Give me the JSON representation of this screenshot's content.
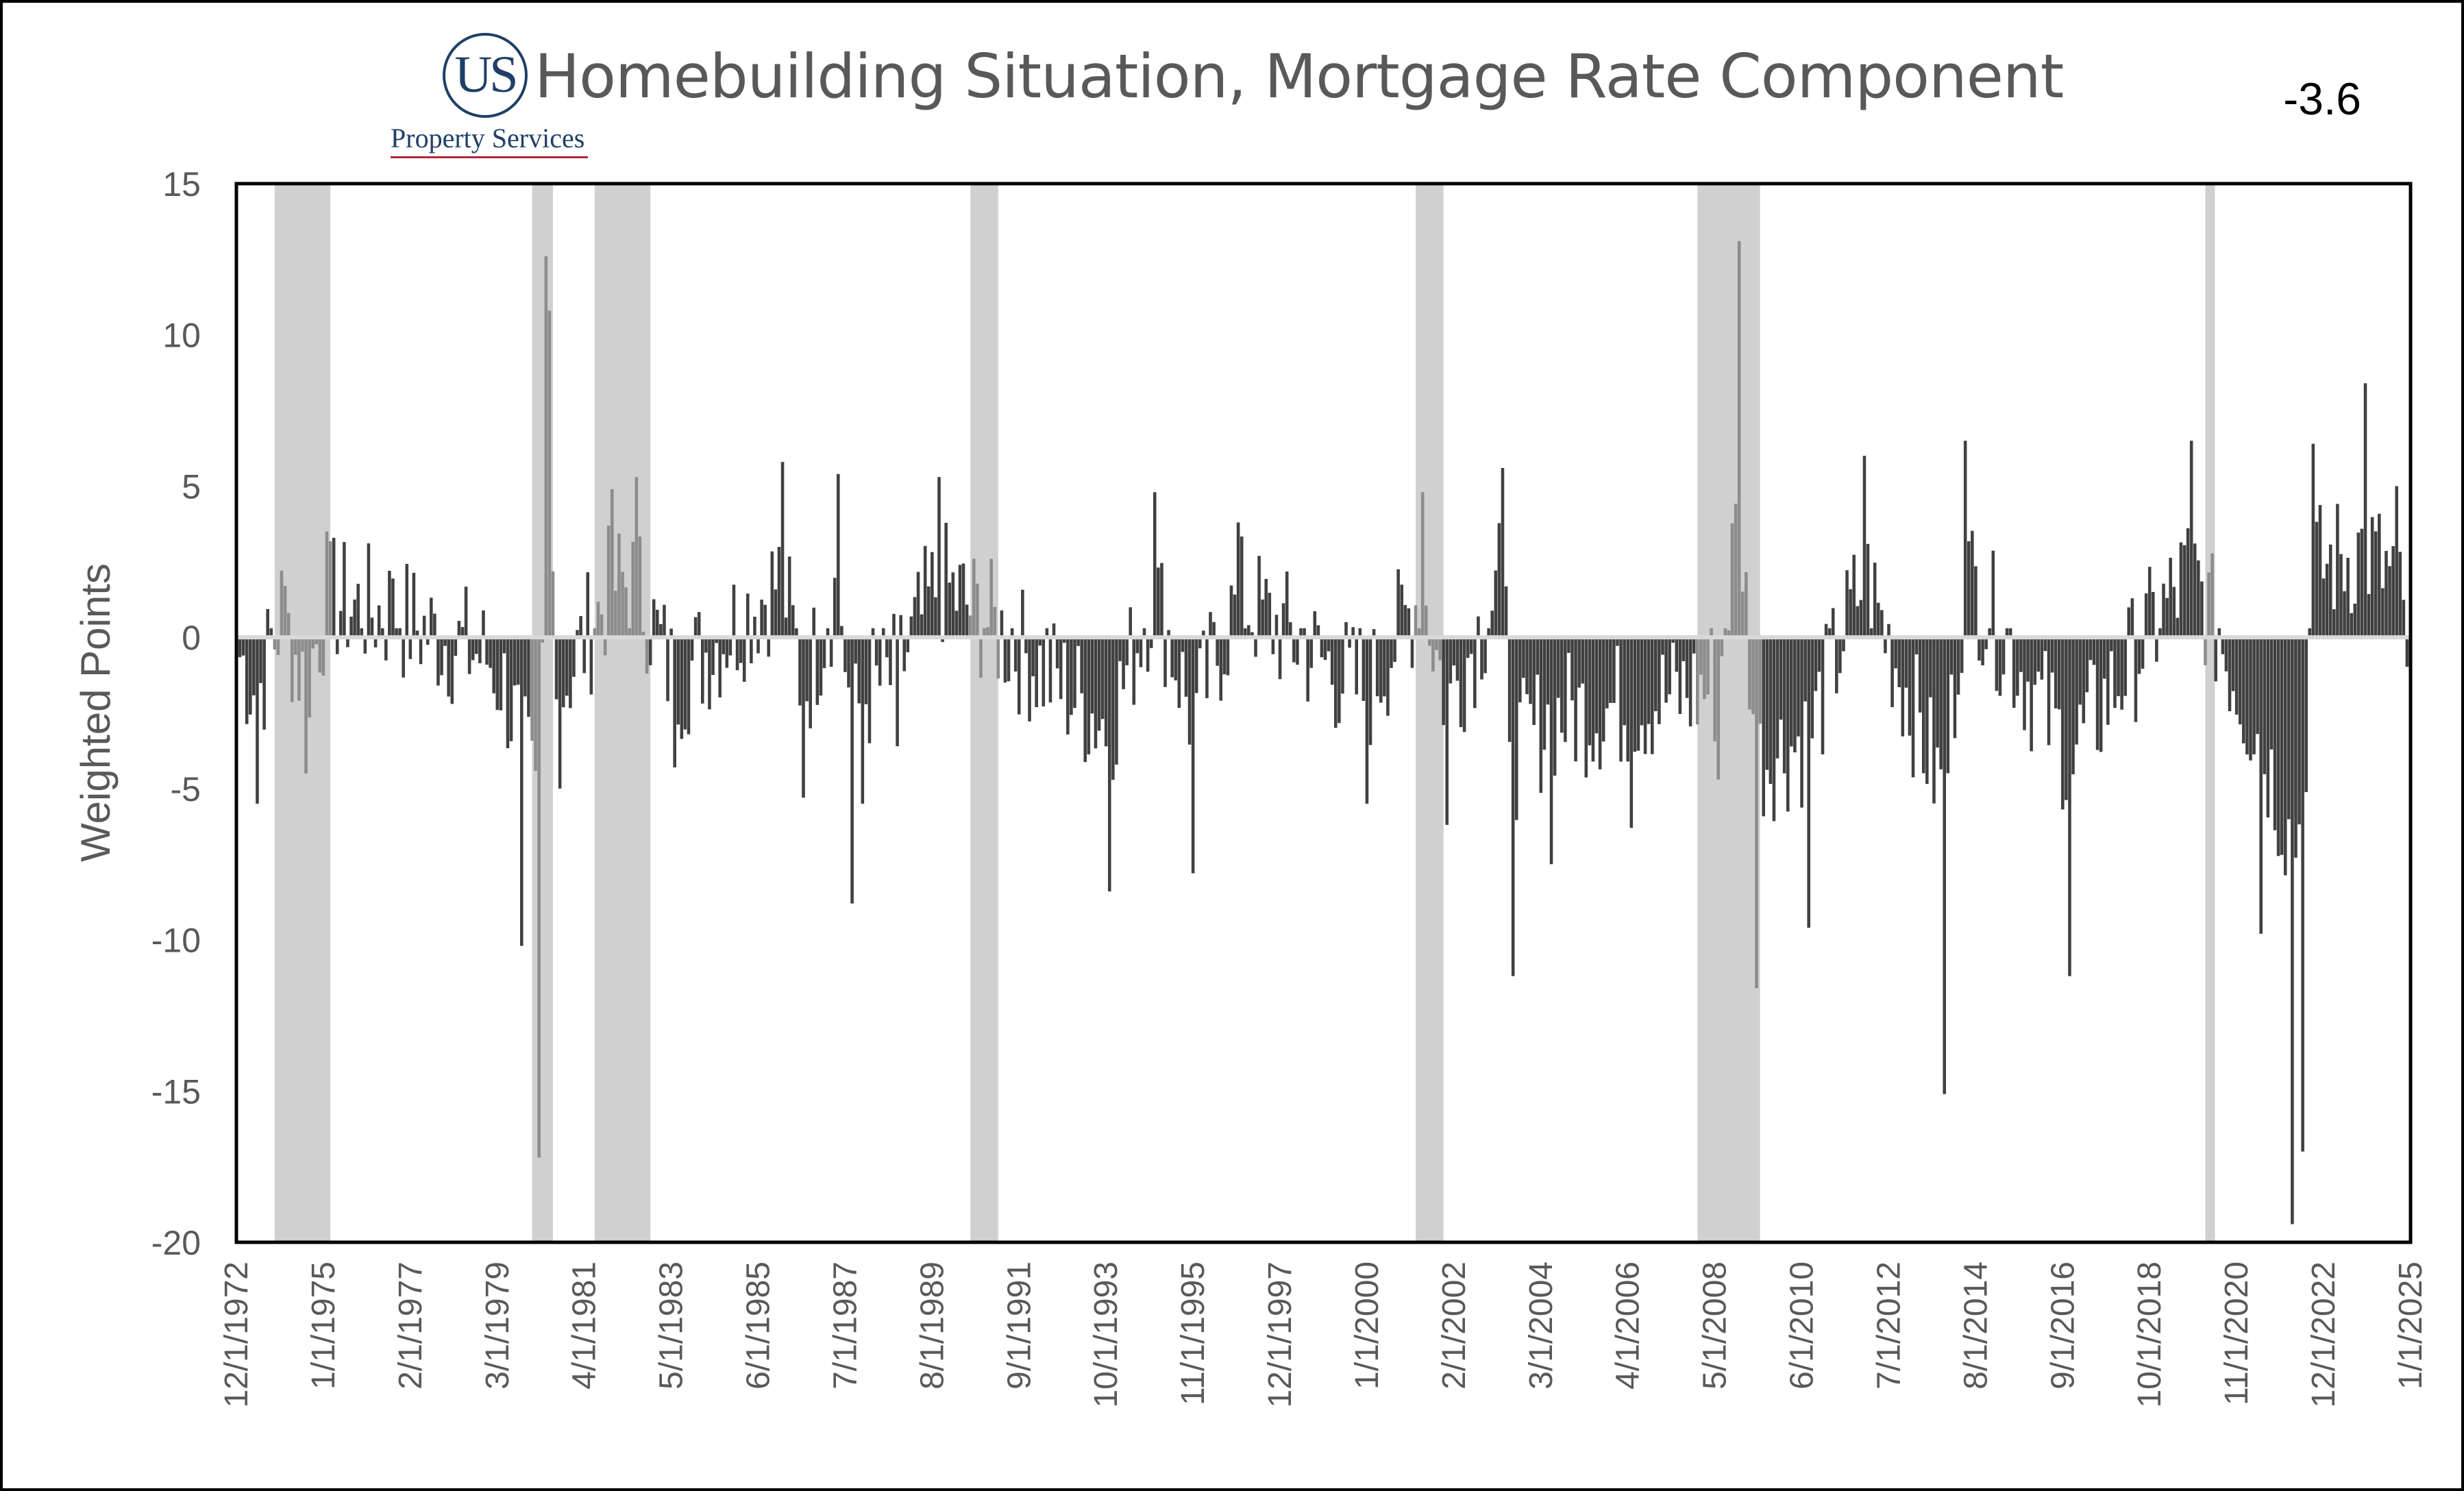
{
  "logo": {
    "mark": "US",
    "name": "Property Services"
  },
  "current_value": "-3.6",
  "colors": {
    "bar": "#404040",
    "recession": "#d0d0d0",
    "zero_line": "#d9d9d9",
    "text": "#595959",
    "logo": "#1f3f66",
    "logo_underline": "#b0283a"
  },
  "chart_data": {
    "type": "bar",
    "title": "Homebuilding Situation, Mortgage Rate Component",
    "ylabel": "Weighted Points",
    "xlabel": "",
    "ylim": [
      -20,
      15
    ],
    "yticks": [
      15,
      10,
      5,
      0,
      -5,
      -10,
      -15,
      -20
    ],
    "x_range": [
      "12/1/1972",
      "1/1/2025"
    ],
    "xtick_labels": [
      "12/1/1972",
      "1/1/1975",
      "2/1/1977",
      "3/1/1979",
      "4/1/1981",
      "5/1/1983",
      "6/1/1985",
      "7/1/1987",
      "8/1/1989",
      "9/1/1991",
      "10/1/1993",
      "11/1/1995",
      "12/1/1997",
      "1/1/2000",
      "2/1/2002",
      "3/1/2004",
      "4/1/2006",
      "5/1/2008",
      "6/1/2010",
      "7/1/2012",
      "8/1/2014",
      "9/1/2016",
      "10/1/2018",
      "11/1/2020",
      "12/1/2022",
      "1/1/2025"
    ],
    "recession_bands": [
      {
        "start": "11/1/1973",
        "end": "3/1/1975"
      },
      {
        "start": "1/1/1980",
        "end": "7/1/1980"
      },
      {
        "start": "7/1/1981",
        "end": "11/1/1982"
      },
      {
        "start": "7/1/1990",
        "end": "3/1/1991"
      },
      {
        "start": "3/1/2001",
        "end": "11/1/2001"
      },
      {
        "start": "12/1/2007",
        "end": "6/1/2009"
      },
      {
        "start": "2/1/2020",
        "end": "4/1/2020"
      }
    ],
    "series": [
      {
        "values_note": "monthly values, selected approximate readings",
        "points": [
          [
            "12/1/1972",
            -1.0
          ],
          [
            "6/1/1973",
            -5.5
          ],
          [
            "1/1/1974",
            2.2
          ],
          [
            "8/1/1974",
            -4.5
          ],
          [
            "2/1/1975",
            3.5
          ],
          [
            "8/1/1976",
            2.2
          ],
          [
            "3/1/1979",
            -2.4
          ],
          [
            "10/1/1979",
            -10.2
          ],
          [
            "3/1/1980",
            -17.2
          ],
          [
            "5/1/1980",
            12.6
          ],
          [
            "6/1/1980",
            10.8
          ],
          [
            "9/1/1980",
            -5.0
          ],
          [
            "12/1/1981",
            4.9
          ],
          [
            "7/1/1982",
            5.3
          ],
          [
            "6/1/1983",
            -4.3
          ],
          [
            "1/1/1986",
            5.8
          ],
          [
            "7/1/1986",
            -5.3
          ],
          [
            "5/1/1987",
            5.4
          ],
          [
            "9/1/1987",
            -8.8
          ],
          [
            "12/1/1987",
            -5.5
          ],
          [
            "10/1/1988",
            -3.6
          ],
          [
            "10/1/1989",
            5.3
          ],
          [
            "11/1/1993",
            -8.4
          ],
          [
            "12/1/1994",
            4.8
          ],
          [
            "11/1/1995",
            -7.8
          ],
          [
            "12/1/1996",
            3.8
          ],
          [
            "1/1/2000",
            -5.5
          ],
          [
            "5/1/2001",
            4.8
          ],
          [
            "12/1/2001",
            -6.2
          ],
          [
            "4/1/2003",
            5.6
          ],
          [
            "7/1/2003",
            -11.2
          ],
          [
            "6/1/2004",
            -7.5
          ],
          [
            "5/1/2006",
            -6.3
          ],
          [
            "6/1/2008",
            -4.7
          ],
          [
            "12/1/2008",
            13.1
          ],
          [
            "5/1/2009",
            -11.6
          ],
          [
            "8/1/2010",
            -9.6
          ],
          [
            "12/1/2011",
            6.0
          ],
          [
            "11/1/2013",
            -15.1
          ],
          [
            "5/1/2014",
            6.5
          ],
          [
            "11/1/2016",
            -11.2
          ],
          [
            "10/1/2019",
            6.5
          ],
          [
            "6/1/2021",
            -9.8
          ],
          [
            "3/1/2022",
            -19.4
          ],
          [
            "6/1/2022",
            -17.0
          ],
          [
            "9/1/2022",
            6.4
          ],
          [
            "12/1/2023",
            8.4
          ],
          [
            "9/1/2024",
            5.0
          ],
          [
            "1/1/2025",
            -3.6
          ]
        ]
      }
    ],
    "grid": false,
    "legend": "none"
  }
}
